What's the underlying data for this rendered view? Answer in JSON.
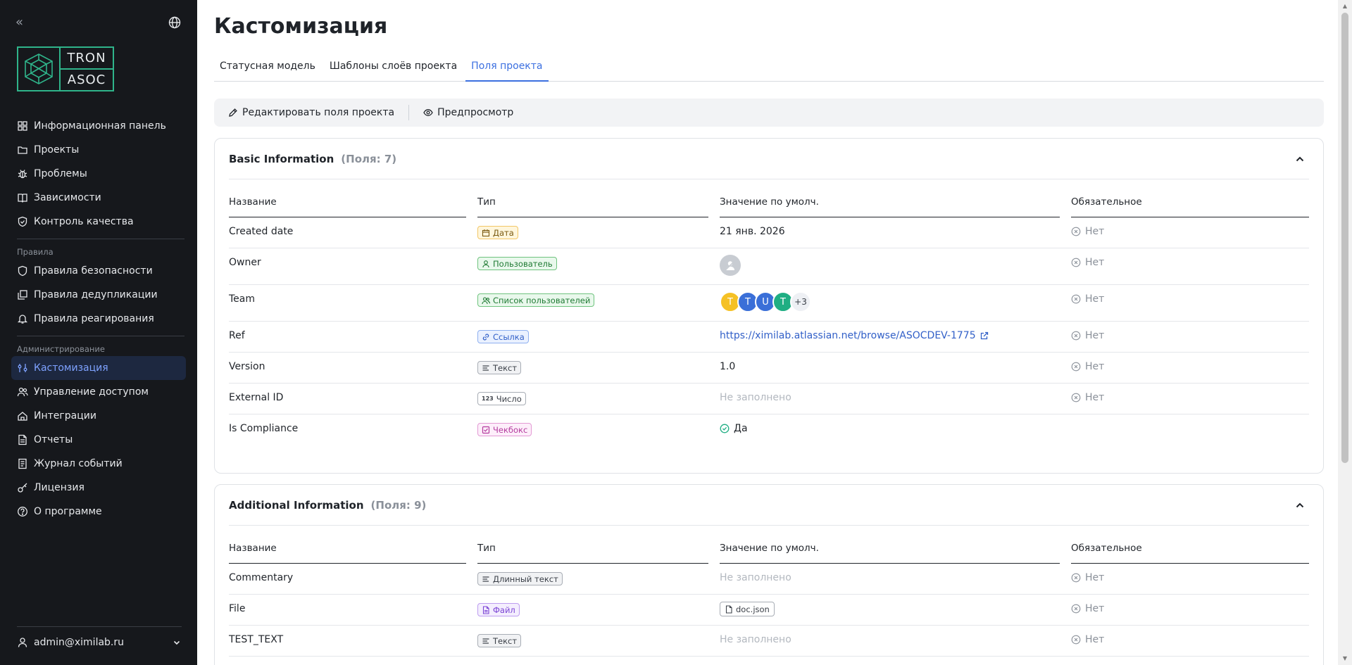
{
  "sidebar": {
    "collapse_glyph": "«",
    "logo": {
      "top": "TRON",
      "bottom": "ASOC"
    },
    "nav_main": [
      {
        "label": "Информационная панель",
        "icon": "dashboard-icon"
      },
      {
        "label": "Проекты",
        "icon": "folder-icon"
      },
      {
        "label": "Проблемы",
        "icon": "bug-icon"
      },
      {
        "label": "Зависимости",
        "icon": "book-icon"
      },
      {
        "label": "Контроль качества",
        "icon": "shield-check-icon"
      }
    ],
    "section_rules": "Правила",
    "nav_rules": [
      {
        "label": "Правила безопасности",
        "icon": "shield-icon"
      },
      {
        "label": "Правила дедупликации",
        "icon": "copy-icon"
      },
      {
        "label": "Правила реагирования",
        "icon": "bell-icon"
      }
    ],
    "section_admin": "Администрирование",
    "nav_admin": [
      {
        "label": "Кастомизация",
        "icon": "sliders-icon",
        "active": true
      },
      {
        "label": "Управление доступом",
        "icon": "users-icon"
      },
      {
        "label": "Интеграции",
        "icon": "plug-icon"
      },
      {
        "label": "Отчеты",
        "icon": "report-icon"
      },
      {
        "label": "Журнал событий",
        "icon": "journal-icon"
      },
      {
        "label": "Лицензия",
        "icon": "key-icon"
      },
      {
        "label": "О программе",
        "icon": "help-icon"
      }
    ],
    "user": "admin@ximilab.ru"
  },
  "main": {
    "title": "Кастомизация",
    "tabs": [
      {
        "label": "Статусная модель"
      },
      {
        "label": "Шаблоны слоёв проекта"
      },
      {
        "label": "Поля проекта",
        "active": true
      }
    ],
    "toolbar": {
      "edit_label": "Редактировать поля проекта",
      "preview_label": "Предпросмотр"
    },
    "columns": {
      "name": "Название",
      "type": "Тип",
      "default": "Значение по умолч.",
      "required": "Обязательное"
    },
    "basic": {
      "title": "Basic Information",
      "count": "(Поля: 7)",
      "rows": [
        {
          "name": "Created date",
          "type": "Дата",
          "value": "21 янв. 2026",
          "required": "Нет"
        },
        {
          "name": "Owner",
          "type": "Пользователь",
          "required": "Нет"
        },
        {
          "name": "Team",
          "type": "Список пользователей",
          "avatars": [
            "T",
            "T",
            "U",
            "T"
          ],
          "more": "+3",
          "required": "Нет"
        },
        {
          "name": "Ref",
          "type": "Ссылка",
          "value": "https://ximilab.atlassian.net/browse/ASOCDEV-1775",
          "required": "Нет"
        },
        {
          "name": "Version",
          "type": "Текст",
          "value": "1.0",
          "required": "Нет"
        },
        {
          "name": "External ID",
          "type": "Число",
          "type_prefix": "123",
          "value": "Не заполнено",
          "required": "Нет"
        },
        {
          "name": "Is Compliance",
          "type": "Чекбокс",
          "value": "Да"
        }
      ]
    },
    "additional": {
      "title": "Additional Information",
      "count": "(Поля: 9)",
      "rows": [
        {
          "name": "Commentary",
          "type": "Длинный текст",
          "value": "Не заполнено",
          "required": "Нет"
        },
        {
          "name": "File",
          "type": "Файл",
          "value": "doc.json",
          "required": "Нет"
        },
        {
          "name": "TEST_TEXT",
          "type": "Текст",
          "value": "Не заполнено",
          "required": "Нет"
        }
      ]
    }
  },
  "colors": {
    "sidebar_bg": "#16181c",
    "accent": "#3b6fe0",
    "logo_green": "#2fb48a",
    "avatar_colors": [
      "#f5c125",
      "#3a6fd8",
      "#3a6fd8",
      "#1fae83"
    ]
  }
}
